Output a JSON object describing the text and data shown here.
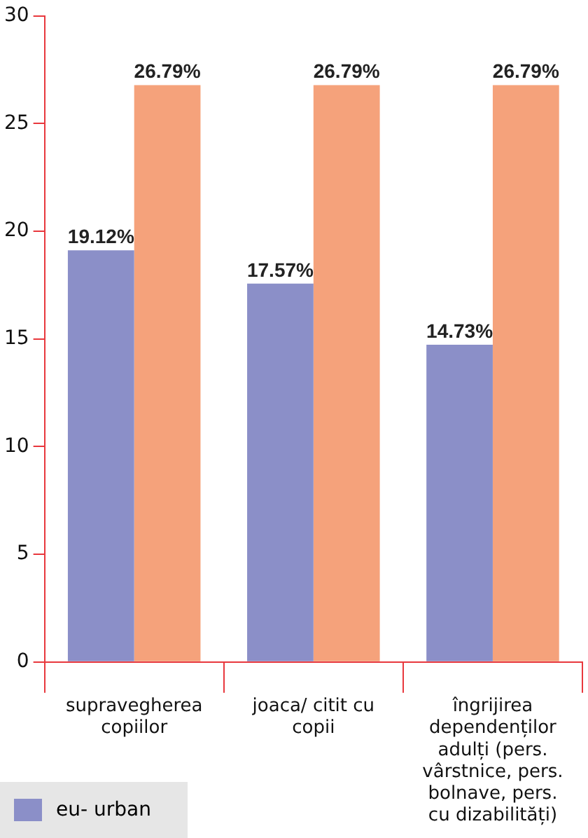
{
  "chart_data": {
    "type": "bar",
    "categories": [
      "supravegherea copiilor",
      "joaca/ citit cu copii",
      "îngrijirea dependenților adulți (pers. vârstnice, pers. bolnave, pers. cu dizabilități)"
    ],
    "series": [
      {
        "name": "eu- urban",
        "color": "#8b8fc8",
        "values": [
          19.12,
          17.57,
          14.73
        ]
      },
      {
        "color": "#f5a27b",
        "values": [
          26.79,
          26.79,
          26.79
        ]
      }
    ],
    "value_labels": [
      [
        "19.12%",
        "17.57%",
        "14.73%"
      ],
      [
        "26.79%",
        "26.79%",
        "26.79%"
      ]
    ],
    "ylim": [
      0,
      30
    ],
    "yticks": [
      0,
      5,
      10,
      15,
      20,
      25,
      30
    ],
    "grid": false,
    "legend": "bottom left"
  }
}
